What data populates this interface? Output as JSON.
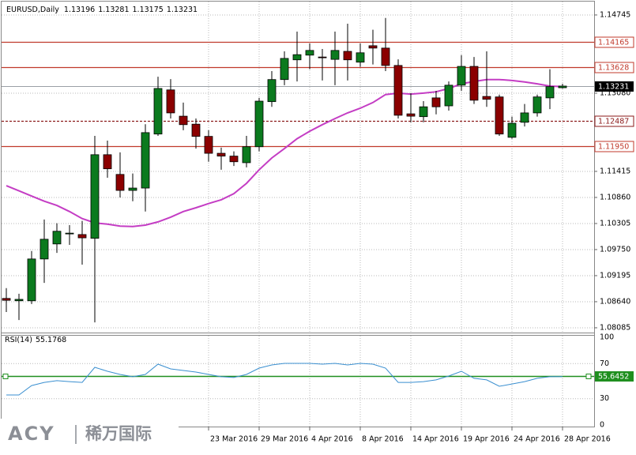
{
  "chart_data": [
    {
      "type": "candlestick",
      "title": "EURUSD,Daily",
      "categories": [
        null,
        null,
        null,
        null,
        null,
        null,
        null,
        null,
        null,
        null,
        null,
        null,
        null,
        null,
        null,
        null,
        "23 Mar 2016",
        null,
        null,
        null,
        "29 Mar 2016",
        null,
        null,
        null,
        "4 Apr 2016",
        null,
        null,
        null,
        "8 Apr 2016",
        null,
        null,
        null,
        "14 Apr 2016",
        null,
        null,
        null,
        "19 Apr 2016",
        null,
        null,
        null,
        "24 Apr 2016",
        null,
        null,
        null,
        "28 Apr 2016"
      ],
      "open": [
        1.0871,
        1.0866,
        1.0866,
        1.0955,
        1.0987,
        1.1009,
        1.1007,
        1.0999,
        1.1177,
        1.1135,
        1.1101,
        1.1106,
        1.1221,
        1.1315,
        1.1259,
        1.1242,
        1.1216,
        1.118,
        1.1174,
        1.116,
        1.1194,
        1.129,
        1.1337,
        1.1379,
        1.1389,
        1.1385,
        1.138,
        1.1397,
        1.1374,
        1.1409,
        1.1404,
        1.1367,
        1.1264,
        1.1258,
        1.1298,
        1.1281,
        1.1325,
        1.1365,
        1.1301,
        1.13,
        1.1214,
        1.1246,
        1.1266,
        1.1298,
        1.13196
      ],
      "high": [
        1.0893,
        1.0881,
        1.0972,
        1.1039,
        1.1031,
        1.1027,
        1.1036,
        1.1217,
        1.1207,
        1.1182,
        1.1137,
        1.1242,
        1.1343,
        1.1338,
        1.1288,
        1.1254,
        1.1229,
        1.1192,
        1.1184,
        1.1217,
        1.1298,
        1.1355,
        1.1397,
        1.1439,
        1.1414,
        1.1402,
        1.1439,
        1.1456,
        1.1414,
        1.1443,
        1.1468,
        1.138,
        1.1308,
        1.1291,
        1.1313,
        1.1333,
        1.1389,
        1.1385,
        1.1397,
        1.1305,
        1.1258,
        1.1285,
        1.1305,
        1.1359,
        1.13281
      ],
      "low": [
        1.0842,
        1.0825,
        1.0859,
        1.0904,
        1.0968,
        1.0985,
        1.0943,
        1.082,
        1.1128,
        1.1086,
        1.1078,
        1.1056,
        1.1217,
        1.1254,
        1.1229,
        1.119,
        1.1162,
        1.1145,
        1.1153,
        1.115,
        1.1184,
        1.1279,
        1.1325,
        1.1333,
        1.1359,
        1.1335,
        1.1325,
        1.1335,
        1.1364,
        1.1369,
        1.1355,
        1.1254,
        1.1246,
        1.1246,
        1.1263,
        1.1271,
        1.1313,
        1.1285,
        1.1279,
        1.1217,
        1.1211,
        1.1237,
        1.1258,
        1.1274,
        1.13175
      ],
      "close": [
        1.0867,
        1.0869,
        1.0955,
        1.0997,
        1.1014,
        1.101,
        1.1,
        1.1177,
        1.1147,
        1.1101,
        1.1106,
        1.1224,
        1.1318,
        1.1266,
        1.1241,
        1.1216,
        1.118,
        1.1174,
        1.1162,
        1.1194,
        1.1291,
        1.1337,
        1.1382,
        1.139,
        1.1399,
        1.1384,
        1.1399,
        1.1379,
        1.1394,
        1.1404,
        1.1367,
        1.1261,
        1.1259,
        1.1279,
        1.1279,
        1.1325,
        1.1365,
        1.1293,
        1.1295,
        1.1221,
        1.1244,
        1.1266,
        1.13,
        1.1322,
        1.13231
      ],
      "up_color": "#0b7a1e",
      "down_color": "#8b0000",
      "ma": {
        "color": "#c43dc4",
        "values": [
          1.1111,
          1.11,
          1.1089,
          1.1078,
          1.1069,
          1.1056,
          1.1041,
          1.1032,
          1.1029,
          1.1025,
          1.1024,
          1.1027,
          1.1034,
          1.1044,
          1.1056,
          1.1064,
          1.1073,
          1.1081,
          1.1094,
          1.1116,
          1.1145,
          1.117,
          1.119,
          1.1211,
          1.1227,
          1.1241,
          1.1254,
          1.1266,
          1.1276,
          1.1288,
          1.1305,
          1.1308,
          1.1306,
          1.1308,
          1.1311,
          1.1318,
          1.1328,
          1.1333,
          1.1337,
          1.1337,
          1.1335,
          1.1332,
          1.1328,
          1.1323,
          1.1322
        ]
      },
      "hlines": [
        {
          "value": 1.14165,
          "color": "#c0392b"
        },
        {
          "value": 1.13628,
          "color": "#c0392b"
        },
        {
          "value": 1.12487,
          "label": "1.12487",
          "color": "#8b1a1a",
          "dashed": true
        },
        {
          "value": 1.1195,
          "label": "1.11950",
          "color": "#c0392b"
        }
      ],
      "ylim": [
        1.08,
        1.1503
      ],
      "yticks": [
        1.14745,
        {
          "value": 1.1308,
          "label": "1.13080"
        },
        1.11415,
        {
          "value": 1.1086,
          "label": "1.10860"
        },
        1.10305,
        {
          "value": 1.0975,
          "label": "1.09750"
        },
        1.09195,
        {
          "value": 1.0864,
          "label": "1.08640"
        },
        1.08085
      ],
      "grid": true
    },
    {
      "type": "line",
      "title": "RSI(14)",
      "color": "#3a8fd0",
      "values": [
        34.2,
        34.2,
        45.0,
        48.6,
        50.5,
        49.5,
        48.6,
        65.8,
        61.3,
        57.7,
        55.0,
        57.7,
        69.4,
        64.0,
        62.2,
        60.4,
        57.7,
        55.0,
        54.1,
        57.7,
        64.9,
        68.5,
        70.3,
        70.3,
        70.3,
        69.4,
        70.3,
        68.5,
        70.3,
        69.4,
        64.9,
        48.6,
        48.6,
        49.5,
        51.4,
        55.9,
        61.3,
        53.2,
        51.4,
        44.1,
        46.8,
        49.5,
        53.2,
        55.0,
        55.1768
      ],
      "level": {
        "value": 55.6452,
        "color": "#1f8f1f"
      },
      "ylim": [
        0,
        100
      ],
      "yticks": [
        0,
        30,
        70,
        100
      ],
      "grid": true
    }
  ],
  "watermark": {
    "brand": "ACY",
    "name": "稀万国际"
  }
}
